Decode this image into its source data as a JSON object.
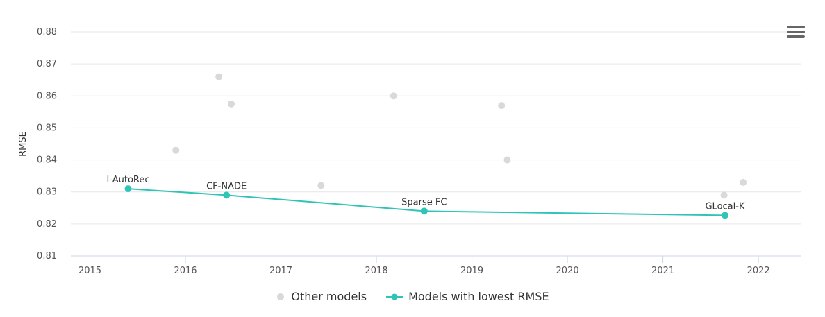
{
  "chart_data": {
    "type": "scatter",
    "ylabel": "RMSE",
    "xlabel": "",
    "xlim": [
      2014.8,
      2022.45
    ],
    "ylim": [
      0.81,
      0.88
    ],
    "x_ticks": [
      "2015",
      "2016",
      "2017",
      "2018",
      "2019",
      "2020",
      "2021",
      "2022"
    ],
    "y_ticks": [
      "0.81",
      "0.82",
      "0.83",
      "0.84",
      "0.85",
      "0.86",
      "0.87",
      "0.88"
    ],
    "grid": true,
    "legend_position": "bottom",
    "series": [
      {
        "name": "Other models",
        "color": "#d9d9d9",
        "points": [
          {
            "x": 2015.9,
            "y": 0.843
          },
          {
            "x": 2016.35,
            "y": 0.866
          },
          {
            "x": 2016.48,
            "y": 0.8575
          },
          {
            "x": 2017.42,
            "y": 0.832
          },
          {
            "x": 2018.18,
            "y": 0.86
          },
          {
            "x": 2019.31,
            "y": 0.857
          },
          {
            "x": 2019.37,
            "y": 0.84
          },
          {
            "x": 2021.64,
            "y": 0.829
          },
          {
            "x": 2021.84,
            "y": 0.833
          }
        ]
      },
      {
        "name": "Models with lowest RMSE",
        "color": "#2ec4b6",
        "points": [
          {
            "x": 2015.4,
            "y": 0.831,
            "label": "I-AutoRec"
          },
          {
            "x": 2016.43,
            "y": 0.829,
            "label": "CF-NADE"
          },
          {
            "x": 2018.5,
            "y": 0.824,
            "label": "Sparse FC"
          },
          {
            "x": 2021.65,
            "y": 0.8227,
            "label": "GLocal-K"
          }
        ]
      }
    ]
  }
}
